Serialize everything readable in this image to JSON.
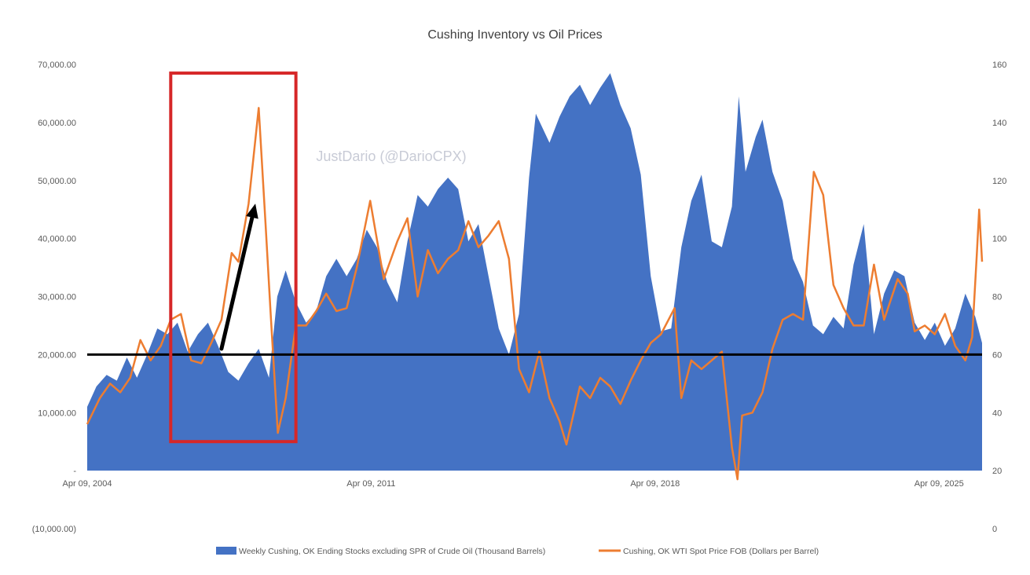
{
  "chart_data": {
    "type": "area",
    "title": "Cushing Inventory vs Oil Prices",
    "watermark": "JustDario (@DarioCPX)",
    "x_tick_labels": [
      "Apr 09, 2004",
      "Apr 09, 2011",
      "Apr 09, 2018",
      "Apr 09, 2025"
    ],
    "x_range": [
      "2004-04-09",
      "2026-05-01"
    ],
    "y_left": {
      "range": [
        -10000,
        70000
      ],
      "tick_labels": [
        "(10,000.00)",
        "-",
        "10,000.00",
        "20,000.00",
        "30,000.00",
        "40,000.00",
        "50,000.00",
        "60,000.00",
        "70,000.00"
      ],
      "tick_values": [
        -10000,
        0,
        10000,
        20000,
        30000,
        40000,
        50000,
        60000,
        70000
      ]
    },
    "y_right": {
      "range": [
        0,
        160
      ],
      "tick_labels": [
        "0",
        "20",
        "40",
        "60",
        "80",
        "100",
        "120",
        "140",
        "160"
      ],
      "tick_values": [
        0,
        20,
        40,
        60,
        80,
        100,
        120,
        140,
        160
      ]
    },
    "reference_line": {
      "axis": "left",
      "value": 20000,
      "color": "#000000"
    },
    "highlight_box": {
      "x_start": "2006-05-01",
      "x_end": "2009-06-01",
      "y_low": 5000,
      "y_high": 68500,
      "color": "#d62728"
    },
    "arrow": {
      "from_x": "2007-08-01",
      "from_y": 21000,
      "to_x": "2008-06-01",
      "to_y": 46000,
      "color": "#000000"
    },
    "series": [
      {
        "name": "Weekly Cushing, OK Ending Stocks excluding SPR of Crude Oil  (Thousand Barrels)",
        "axis": "left",
        "kind": "area",
        "color": "#4472c4",
        "points": [
          [
            "2004-04-09",
            11000
          ],
          [
            "2004-07-01",
            14500
          ],
          [
            "2004-10-01",
            16500
          ],
          [
            "2005-01-01",
            15500
          ],
          [
            "2005-04-01",
            19500
          ],
          [
            "2005-07-01",
            16000
          ],
          [
            "2005-10-01",
            20000
          ],
          [
            "2006-01-01",
            24500
          ],
          [
            "2006-04-01",
            23500
          ],
          [
            "2006-07-01",
            25500
          ],
          [
            "2006-10-01",
            20500
          ],
          [
            "2007-01-01",
            23500
          ],
          [
            "2007-04-01",
            25500
          ],
          [
            "2007-07-01",
            21500
          ],
          [
            "2007-10-01",
            17000
          ],
          [
            "2008-01-01",
            15500
          ],
          [
            "2008-04-01",
            18500
          ],
          [
            "2008-07-01",
            21000
          ],
          [
            "2008-10-01",
            16000
          ],
          [
            "2008-12-15",
            30000
          ],
          [
            "2009-03-01",
            34500
          ],
          [
            "2009-06-01",
            29000
          ],
          [
            "2009-09-01",
            25500
          ],
          [
            "2009-12-01",
            27500
          ],
          [
            "2010-03-01",
            33500
          ],
          [
            "2010-06-01",
            36500
          ],
          [
            "2010-09-01",
            33500
          ],
          [
            "2010-12-01",
            36500
          ],
          [
            "2011-03-01",
            41500
          ],
          [
            "2011-06-01",
            38500
          ],
          [
            "2011-09-01",
            32500
          ],
          [
            "2011-12-01",
            29000
          ],
          [
            "2012-03-01",
            39500
          ],
          [
            "2012-06-01",
            47500
          ],
          [
            "2012-09-01",
            45500
          ],
          [
            "2012-12-01",
            48500
          ],
          [
            "2013-03-01",
            50500
          ],
          [
            "2013-06-01",
            48500
          ],
          [
            "2013-09-01",
            39500
          ],
          [
            "2013-12-01",
            42500
          ],
          [
            "2014-03-01",
            33500
          ],
          [
            "2014-06-01",
            24500
          ],
          [
            "2014-09-01",
            20000
          ],
          [
            "2014-12-01",
            27000
          ],
          [
            "2015-03-01",
            50500
          ],
          [
            "2015-05-01",
            61500
          ],
          [
            "2015-09-01",
            56500
          ],
          [
            "2015-12-01",
            61000
          ],
          [
            "2016-03-01",
            64500
          ],
          [
            "2016-06-01",
            66500
          ],
          [
            "2016-09-01",
            63000
          ],
          [
            "2016-12-01",
            66000
          ],
          [
            "2017-03-01",
            68500
          ],
          [
            "2017-06-01",
            63000
          ],
          [
            "2017-09-01",
            59000
          ],
          [
            "2017-12-01",
            51000
          ],
          [
            "2018-03-01",
            33500
          ],
          [
            "2018-06-01",
            24000
          ],
          [
            "2018-09-01",
            24500
          ],
          [
            "2018-12-01",
            38500
          ],
          [
            "2019-03-01",
            46500
          ],
          [
            "2019-06-01",
            51000
          ],
          [
            "2019-09-01",
            39500
          ],
          [
            "2019-12-01",
            38500
          ],
          [
            "2020-03-01",
            45500
          ],
          [
            "2020-05-01",
            64500
          ],
          [
            "2020-07-01",
            51500
          ],
          [
            "2020-10-01",
            57500
          ],
          [
            "2020-12-01",
            60500
          ],
          [
            "2021-03-01",
            51500
          ],
          [
            "2021-06-01",
            46500
          ],
          [
            "2021-09-01",
            36500
          ],
          [
            "2021-12-01",
            32500
          ],
          [
            "2022-03-01",
            25000
          ],
          [
            "2022-06-01",
            23500
          ],
          [
            "2022-09-01",
            26500
          ],
          [
            "2022-12-01",
            24500
          ],
          [
            "2023-03-01",
            35500
          ],
          [
            "2023-06-01",
            42500
          ],
          [
            "2023-09-01",
            23500
          ],
          [
            "2023-12-01",
            30500
          ],
          [
            "2024-03-01",
            34500
          ],
          [
            "2024-06-01",
            33500
          ],
          [
            "2024-09-01",
            25500
          ],
          [
            "2024-12-01",
            22500
          ],
          [
            "2025-03-01",
            25500
          ],
          [
            "2025-06-01",
            21500
          ],
          [
            "2025-09-01",
            24500
          ],
          [
            "2025-12-01",
            30500
          ],
          [
            "2026-03-01",
            26500
          ],
          [
            "2026-05-01",
            22000
          ]
        ]
      },
      {
        "name": "Cushing, OK WTI Spot Price FOB (Dollars per Barrel)",
        "axis": "right",
        "kind": "line",
        "color": "#ed7d31",
        "points": [
          [
            "2004-04-09",
            36
          ],
          [
            "2004-08-01",
            45
          ],
          [
            "2004-11-01",
            50
          ],
          [
            "2005-02-01",
            47
          ],
          [
            "2005-05-01",
            52
          ],
          [
            "2005-08-01",
            65
          ],
          [
            "2005-11-01",
            58
          ],
          [
            "2006-02-01",
            63
          ],
          [
            "2006-05-01",
            72
          ],
          [
            "2006-08-01",
            74
          ],
          [
            "2006-11-01",
            58
          ],
          [
            "2007-02-01",
            57
          ],
          [
            "2007-05-01",
            64
          ],
          [
            "2007-08-01",
            72
          ],
          [
            "2007-11-01",
            95
          ],
          [
            "2008-01-01",
            92
          ],
          [
            "2008-04-01",
            112
          ],
          [
            "2008-07-01",
            145
          ],
          [
            "2008-09-01",
            105
          ],
          [
            "2008-10-15",
            75
          ],
          [
            "2008-12-20",
            33
          ],
          [
            "2009-03-01",
            45
          ],
          [
            "2009-06-01",
            70
          ],
          [
            "2009-09-01",
            70
          ],
          [
            "2009-12-01",
            75
          ],
          [
            "2010-03-01",
            81
          ],
          [
            "2010-06-01",
            75
          ],
          [
            "2010-09-01",
            76
          ],
          [
            "2010-12-01",
            90
          ],
          [
            "2011-04-01",
            113
          ],
          [
            "2011-08-01",
            86
          ],
          [
            "2011-12-01",
            99
          ],
          [
            "2012-03-01",
            107
          ],
          [
            "2012-06-01",
            80
          ],
          [
            "2012-09-01",
            96
          ],
          [
            "2012-12-01",
            88
          ],
          [
            "2013-03-01",
            93
          ],
          [
            "2013-06-01",
            96
          ],
          [
            "2013-09-01",
            106
          ],
          [
            "2013-12-01",
            97
          ],
          [
            "2014-03-01",
            101
          ],
          [
            "2014-06-01",
            106
          ],
          [
            "2014-09-01",
            93
          ],
          [
            "2014-12-01",
            55
          ],
          [
            "2015-03-01",
            47
          ],
          [
            "2015-06-01",
            61
          ],
          [
            "2015-09-01",
            45
          ],
          [
            "2015-12-01",
            37
          ],
          [
            "2016-02-01",
            29
          ],
          [
            "2016-06-01",
            49
          ],
          [
            "2016-09-01",
            45
          ],
          [
            "2016-12-01",
            52
          ],
          [
            "2017-03-01",
            49
          ],
          [
            "2017-06-01",
            43
          ],
          [
            "2017-09-01",
            51
          ],
          [
            "2017-12-01",
            58
          ],
          [
            "2018-03-01",
            64
          ],
          [
            "2018-06-01",
            67
          ],
          [
            "2018-10-01",
            76
          ],
          [
            "2018-12-01",
            45
          ],
          [
            "2019-03-01",
            58
          ],
          [
            "2019-06-01",
            55
          ],
          [
            "2019-09-01",
            58
          ],
          [
            "2019-12-01",
            61
          ],
          [
            "2020-03-01",
            28
          ],
          [
            "2020-04-20",
            17
          ],
          [
            "2020-06-01",
            39
          ],
          [
            "2020-09-01",
            40
          ],
          [
            "2020-12-01",
            47
          ],
          [
            "2021-03-01",
            62
          ],
          [
            "2021-06-01",
            72
          ],
          [
            "2021-09-01",
            74
          ],
          [
            "2021-12-01",
            72
          ],
          [
            "2022-03-08",
            123
          ],
          [
            "2022-06-01",
            115
          ],
          [
            "2022-09-01",
            84
          ],
          [
            "2022-12-01",
            76
          ],
          [
            "2023-03-01",
            70
          ],
          [
            "2023-06-01",
            70
          ],
          [
            "2023-09-01",
            91
          ],
          [
            "2023-12-01",
            72
          ],
          [
            "2024-04-01",
            86
          ],
          [
            "2024-07-01",
            81
          ],
          [
            "2024-09-01",
            68
          ],
          [
            "2024-12-01",
            70
          ],
          [
            "2025-03-01",
            67
          ],
          [
            "2025-06-01",
            74
          ],
          [
            "2025-09-01",
            63
          ],
          [
            "2025-12-01",
            58
          ],
          [
            "2026-02-01",
            66
          ],
          [
            "2026-03-15",
            95
          ],
          [
            "2026-04-05",
            110
          ],
          [
            "2026-05-01",
            92
          ]
        ]
      }
    ]
  }
}
